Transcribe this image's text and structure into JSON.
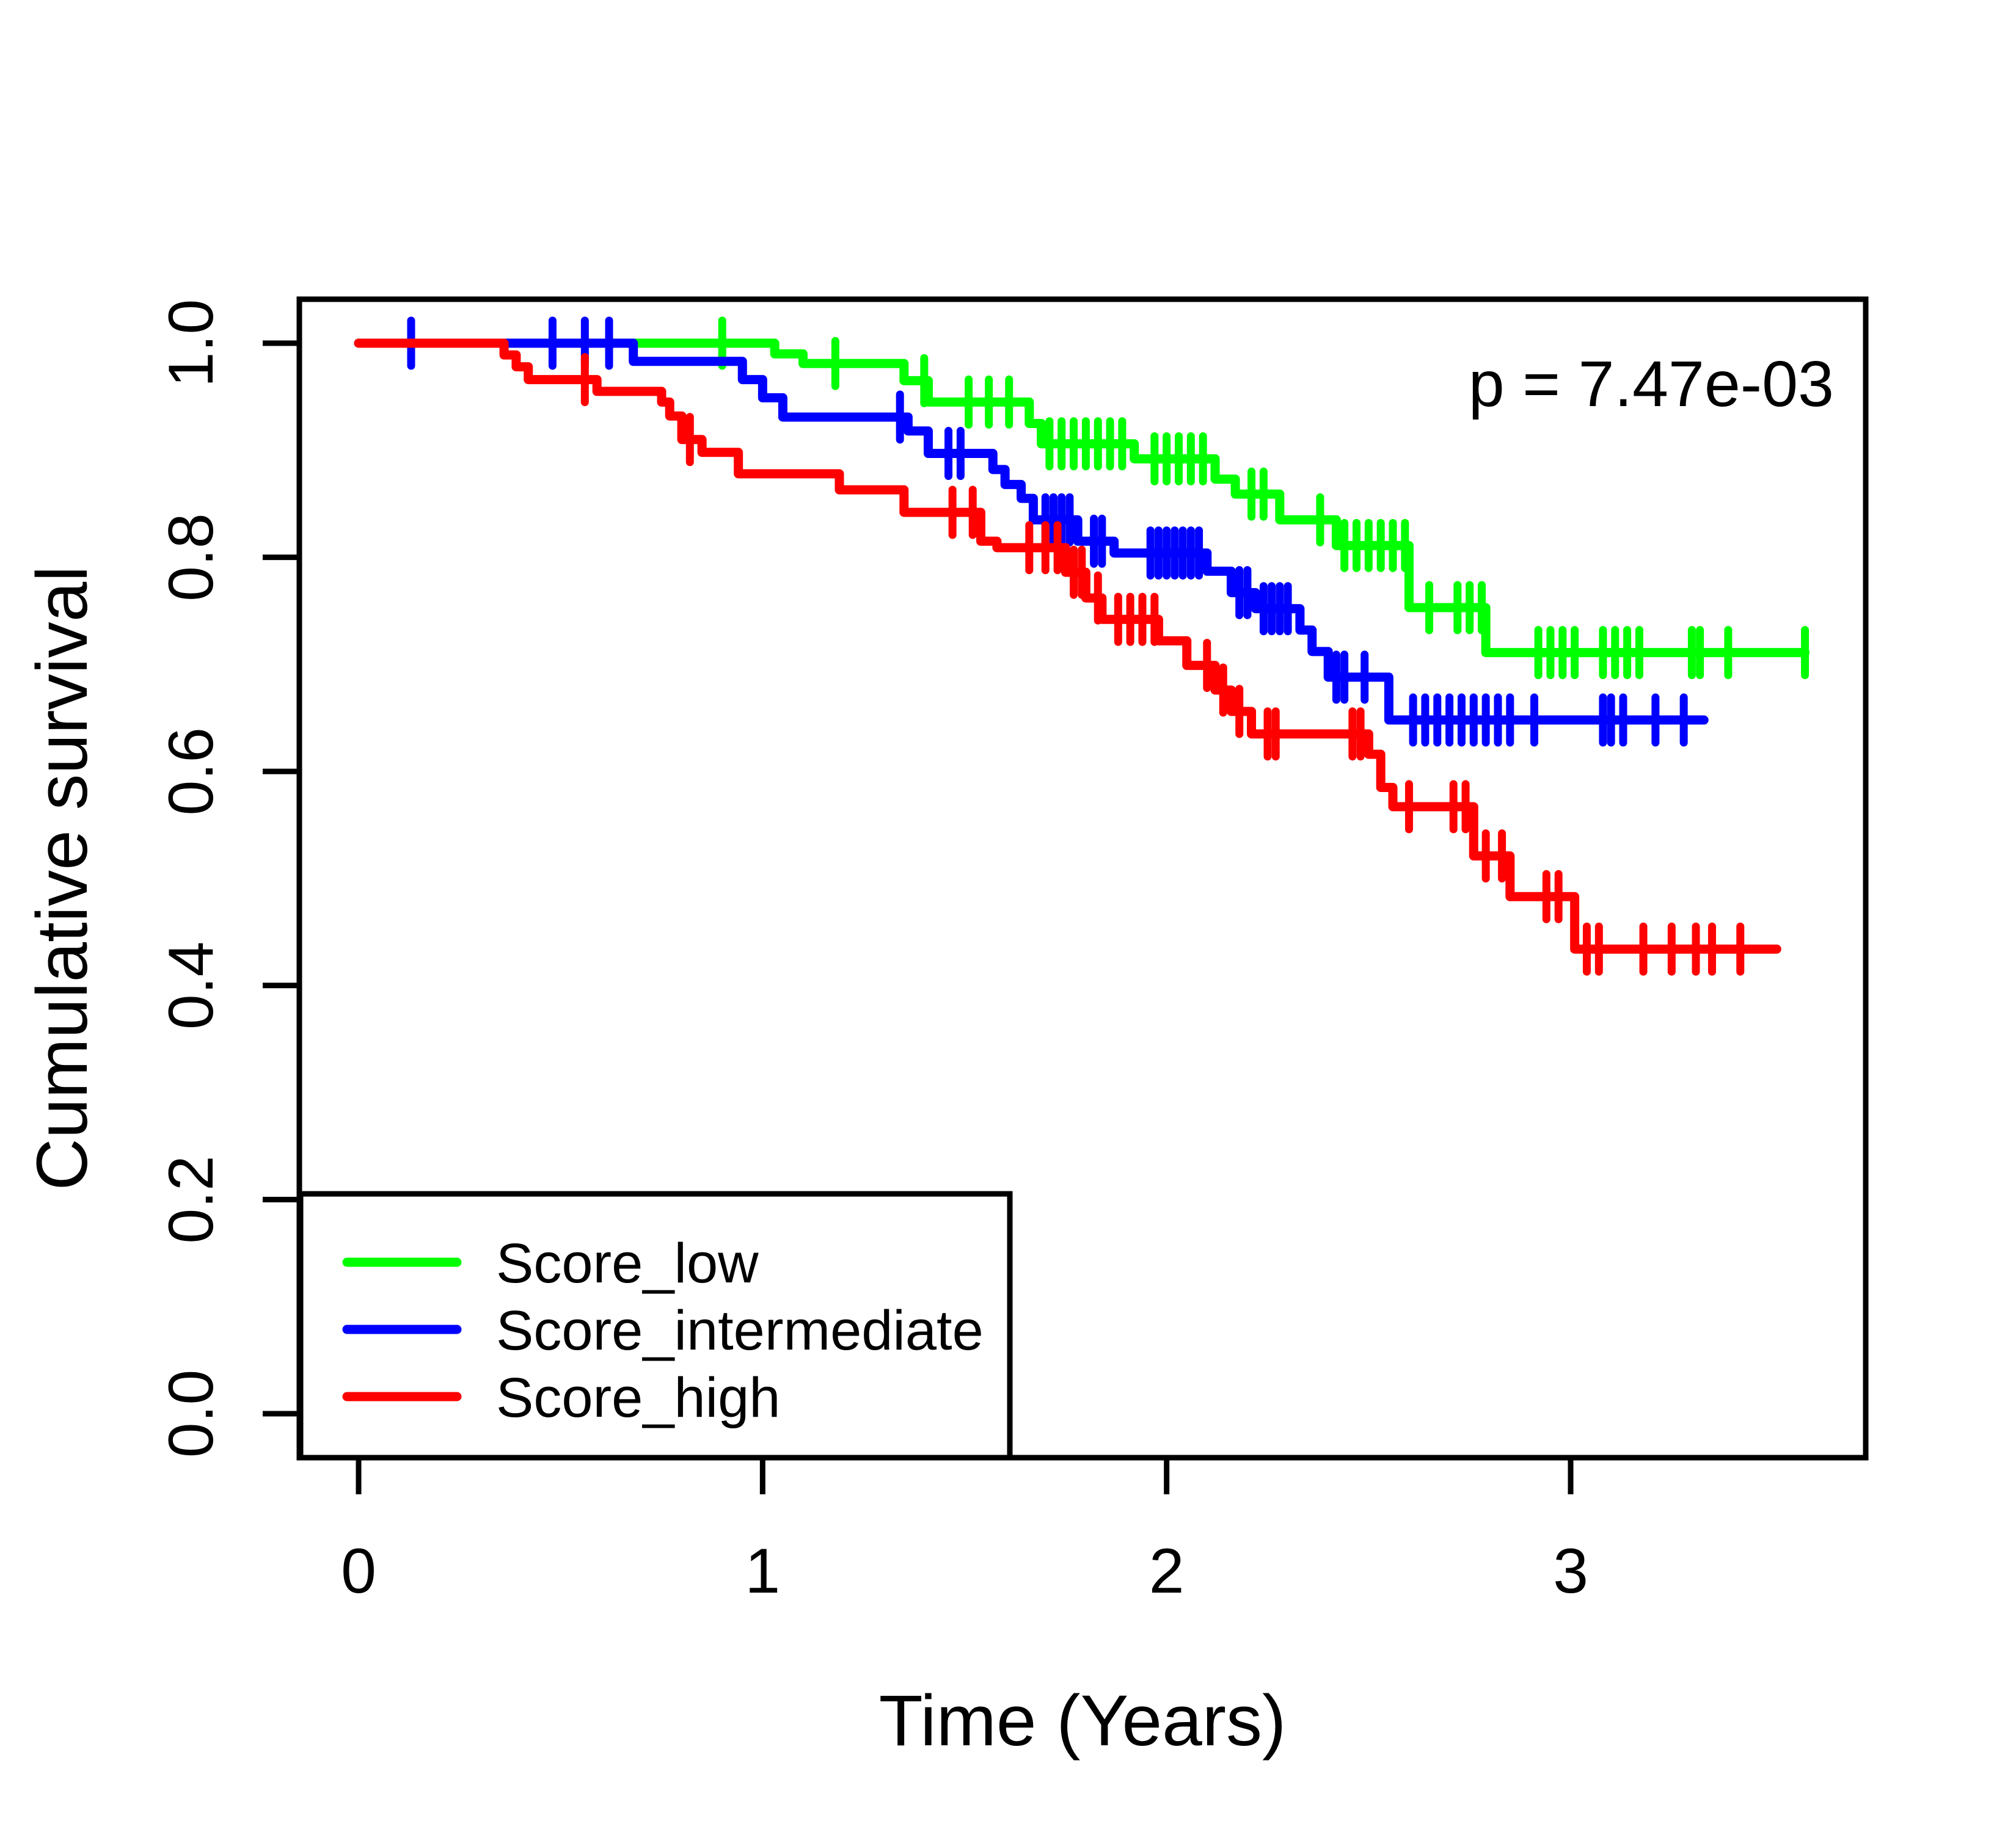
{
  "figure_title": "Kaplan-Meier cumulative survival plot",
  "chart_data": {
    "type": "line",
    "subtype": "kaplan_meier_step",
    "title": "",
    "xlabel": "Time (Years)",
    "ylabel": "Cumulative survival",
    "annotation_p_value": "p = 7.47e-03",
    "xlim": [
      0,
      3.6
    ],
    "ylim": [
      0.0,
      1.0
    ],
    "grid": false,
    "xticks": {
      "values": [
        0,
        1,
        2,
        3
      ],
      "labels": [
        "0",
        "1",
        "2",
        "3"
      ]
    },
    "yticks": {
      "values": [
        0.0,
        0.2,
        0.4,
        0.6,
        0.8,
        1.0
      ],
      "labels": [
        "0.0",
        "0.2",
        "0.4",
        "0.6",
        "0.8",
        "1.0"
      ]
    },
    "legend": {
      "position": "bottom-left"
    },
    "series": [
      {
        "name": "Score_low",
        "color": "#00FF00",
        "start": [
          0,
          1.0
        ],
        "end_time": 3.58,
        "steps": [
          [
            1.03,
            0.99
          ],
          [
            1.1,
            0.981
          ],
          [
            1.35,
            0.965
          ],
          [
            1.41,
            0.945
          ],
          [
            1.66,
            0.925
          ],
          [
            1.69,
            0.906
          ],
          [
            1.92,
            0.892
          ],
          [
            2.12,
            0.873
          ],
          [
            2.17,
            0.859
          ],
          [
            2.28,
            0.835
          ],
          [
            2.42,
            0.811
          ],
          [
            2.6,
            0.753
          ],
          [
            2.79,
            0.711
          ]
        ],
        "censors": [
          [
            0.9,
            1.0
          ],
          [
            1.18,
            0.981
          ],
          [
            1.4,
            0.965
          ],
          [
            1.51,
            0.945
          ],
          [
            1.56,
            0.945
          ],
          [
            1.61,
            0.945
          ],
          [
            1.71,
            0.906
          ],
          [
            1.74,
            0.906
          ],
          [
            1.77,
            0.906
          ],
          [
            1.8,
            0.906
          ],
          [
            1.83,
            0.906
          ],
          [
            1.86,
            0.906
          ],
          [
            1.89,
            0.906
          ],
          [
            1.97,
            0.892
          ],
          [
            2.0,
            0.892
          ],
          [
            2.03,
            0.892
          ],
          [
            2.06,
            0.892
          ],
          [
            2.09,
            0.892
          ],
          [
            2.21,
            0.859
          ],
          [
            2.24,
            0.859
          ],
          [
            2.38,
            0.835
          ],
          [
            2.44,
            0.811
          ],
          [
            2.47,
            0.811
          ],
          [
            2.5,
            0.811
          ],
          [
            2.53,
            0.811
          ],
          [
            2.56,
            0.811
          ],
          [
            2.59,
            0.811
          ],
          [
            2.65,
            0.753
          ],
          [
            2.72,
            0.753
          ],
          [
            2.75,
            0.753
          ],
          [
            2.78,
            0.753
          ],
          [
            2.92,
            0.711
          ],
          [
            2.95,
            0.711
          ],
          [
            2.98,
            0.711
          ],
          [
            3.01,
            0.711
          ],
          [
            3.08,
            0.711
          ],
          [
            3.11,
            0.711
          ],
          [
            3.14,
            0.711
          ],
          [
            3.17,
            0.711
          ],
          [
            3.3,
            0.711
          ],
          [
            3.32,
            0.711
          ],
          [
            3.39,
            0.711
          ],
          [
            3.58,
            0.711
          ]
        ]
      },
      {
        "name": "Score_intermediate",
        "color": "#0000FF",
        "start": [
          0,
          1.0
        ],
        "end_time": 3.33,
        "steps": [
          [
            0.68,
            0.983
          ],
          [
            0.95,
            0.966
          ],
          [
            1.0,
            0.949
          ],
          [
            1.05,
            0.931
          ],
          [
            1.36,
            0.918
          ],
          [
            1.41,
            0.897
          ],
          [
            1.57,
            0.882
          ],
          [
            1.6,
            0.868
          ],
          [
            1.64,
            0.855
          ],
          [
            1.67,
            0.835
          ],
          [
            1.78,
            0.815
          ],
          [
            1.87,
            0.804
          ],
          [
            2.1,
            0.787
          ],
          [
            2.16,
            0.767
          ],
          [
            2.22,
            0.752
          ],
          [
            2.33,
            0.732
          ],
          [
            2.36,
            0.712
          ],
          [
            2.4,
            0.688
          ],
          [
            2.55,
            0.648
          ]
        ],
        "censors": [
          [
            0.13,
            1.0
          ],
          [
            0.48,
            1.0
          ],
          [
            0.56,
            1.0
          ],
          [
            0.62,
            1.0
          ],
          [
            1.34,
            0.931
          ],
          [
            1.46,
            0.897
          ],
          [
            1.49,
            0.897
          ],
          [
            1.7,
            0.835
          ],
          [
            1.72,
            0.835
          ],
          [
            1.74,
            0.835
          ],
          [
            1.76,
            0.835
          ],
          [
            1.82,
            0.815
          ],
          [
            1.84,
            0.815
          ],
          [
            1.96,
            0.804
          ],
          [
            1.98,
            0.804
          ],
          [
            2.0,
            0.804
          ],
          [
            2.02,
            0.804
          ],
          [
            2.04,
            0.804
          ],
          [
            2.06,
            0.804
          ],
          [
            2.08,
            0.804
          ],
          [
            2.18,
            0.767
          ],
          [
            2.2,
            0.767
          ],
          [
            2.24,
            0.752
          ],
          [
            2.26,
            0.752
          ],
          [
            2.28,
            0.752
          ],
          [
            2.3,
            0.752
          ],
          [
            2.42,
            0.688
          ],
          [
            2.44,
            0.688
          ],
          [
            2.49,
            0.688
          ],
          [
            2.61,
            0.648
          ],
          [
            2.64,
            0.648
          ],
          [
            2.67,
            0.648
          ],
          [
            2.7,
            0.648
          ],
          [
            2.73,
            0.648
          ],
          [
            2.76,
            0.648
          ],
          [
            2.79,
            0.648
          ],
          [
            2.82,
            0.648
          ],
          [
            2.85,
            0.648
          ],
          [
            2.91,
            0.648
          ],
          [
            3.08,
            0.648
          ],
          [
            3.1,
            0.648
          ],
          [
            3.13,
            0.648
          ],
          [
            3.21,
            0.648
          ],
          [
            3.28,
            0.648
          ]
        ]
      },
      {
        "name": "Score_high",
        "color": "#FF0000",
        "start": [
          0,
          1.0
        ],
        "end_time": 3.51,
        "steps": [
          [
            0.36,
            0.989
          ],
          [
            0.39,
            0.978
          ],
          [
            0.42,
            0.966
          ],
          [
            0.59,
            0.955
          ],
          [
            0.75,
            0.945
          ],
          [
            0.77,
            0.932
          ],
          [
            0.8,
            0.91
          ],
          [
            0.85,
            0.898
          ],
          [
            0.94,
            0.878
          ],
          [
            1.19,
            0.863
          ],
          [
            1.35,
            0.842
          ],
          [
            1.54,
            0.815
          ],
          [
            1.58,
            0.809
          ],
          [
            1.75,
            0.786
          ],
          [
            1.8,
            0.762
          ],
          [
            1.84,
            0.742
          ],
          [
            1.98,
            0.722
          ],
          [
            2.05,
            0.699
          ],
          [
            2.12,
            0.676
          ],
          [
            2.16,
            0.656
          ],
          [
            2.21,
            0.635
          ],
          [
            2.5,
            0.616
          ],
          [
            2.53,
            0.585
          ],
          [
            2.56,
            0.567
          ],
          [
            2.76,
            0.521
          ],
          [
            2.85,
            0.483
          ],
          [
            3.01,
            0.434
          ]
        ],
        "censors": [
          [
            0.56,
            0.966
          ],
          [
            0.82,
            0.91
          ],
          [
            1.47,
            0.842
          ],
          [
            1.52,
            0.842
          ],
          [
            1.66,
            0.809
          ],
          [
            1.7,
            0.809
          ],
          [
            1.73,
            0.809
          ],
          [
            1.77,
            0.786
          ],
          [
            1.79,
            0.786
          ],
          [
            1.83,
            0.762
          ],
          [
            1.88,
            0.742
          ],
          [
            1.91,
            0.742
          ],
          [
            1.94,
            0.742
          ],
          [
            1.97,
            0.742
          ],
          [
            2.1,
            0.699
          ],
          [
            2.14,
            0.676
          ],
          [
            2.18,
            0.656
          ],
          [
            2.25,
            0.635
          ],
          [
            2.27,
            0.635
          ],
          [
            2.46,
            0.635
          ],
          [
            2.48,
            0.635
          ],
          [
            2.6,
            0.567
          ],
          [
            2.71,
            0.567
          ],
          [
            2.74,
            0.567
          ],
          [
            2.79,
            0.521
          ],
          [
            2.83,
            0.521
          ],
          [
            2.94,
            0.483
          ],
          [
            2.97,
            0.483
          ],
          [
            3.04,
            0.434
          ],
          [
            3.07,
            0.434
          ],
          [
            3.18,
            0.434
          ],
          [
            3.25,
            0.434
          ],
          [
            3.31,
            0.434
          ],
          [
            3.35,
            0.434
          ],
          [
            3.42,
            0.434
          ]
        ]
      }
    ]
  }
}
